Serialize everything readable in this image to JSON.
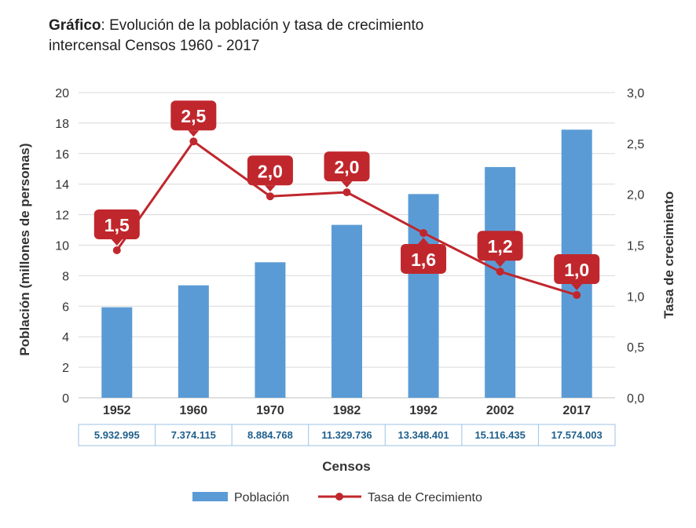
{
  "title": {
    "prefix": "Gráfico",
    "line1": ": Evolución de la población y tasa de crecimiento",
    "line2": "intercensal Censos 1960 - 2017"
  },
  "colors": {
    "bar": "#5b9bd5",
    "line": "#c0272d",
    "callout": "#c0272d",
    "table_text": "#1f5f8b"
  },
  "chart_data": {
    "type": "bar+line",
    "categories": [
      "1952",
      "1960",
      "1970",
      "1982",
      "1992",
      "2002",
      "2017"
    ],
    "series": [
      {
        "name": "Población",
        "type": "bar",
        "axis": "left",
        "values": [
          5.93,
          7.37,
          8.88,
          11.33,
          13.35,
          15.12,
          17.57
        ],
        "table_labels": [
          "5.932.995",
          "7.374.115",
          "8.884.768",
          "11.329.736",
          "13.348.401",
          "15.116.435",
          "17.574.003"
        ]
      },
      {
        "name": "Tasa de Crecimiento",
        "type": "line",
        "axis": "right",
        "values": [
          1.45,
          2.52,
          1.98,
          2.02,
          1.62,
          1.24,
          1.01
        ],
        "data_labels": [
          "1,5",
          "2,5",
          "2,0",
          "2,0",
          "1,6",
          "1,2",
          "1,0"
        ]
      }
    ],
    "xlabel": "Censos",
    "ylabel_left": "Población (millones de personas)",
    "ylabel_right": "Tasa de crecimiento",
    "ylim_left": [
      0,
      20
    ],
    "ylim_right": [
      0,
      3
    ],
    "yticks_left": [
      "0",
      "2",
      "4",
      "6",
      "8",
      "10",
      "12",
      "14",
      "16",
      "18",
      "20"
    ],
    "yticks_right": [
      "0,0",
      "0,5",
      "1,0",
      "1,5",
      "2,0",
      "2,5",
      "3,0"
    ],
    "grid": "horizontal",
    "legend_position": "bottom"
  }
}
